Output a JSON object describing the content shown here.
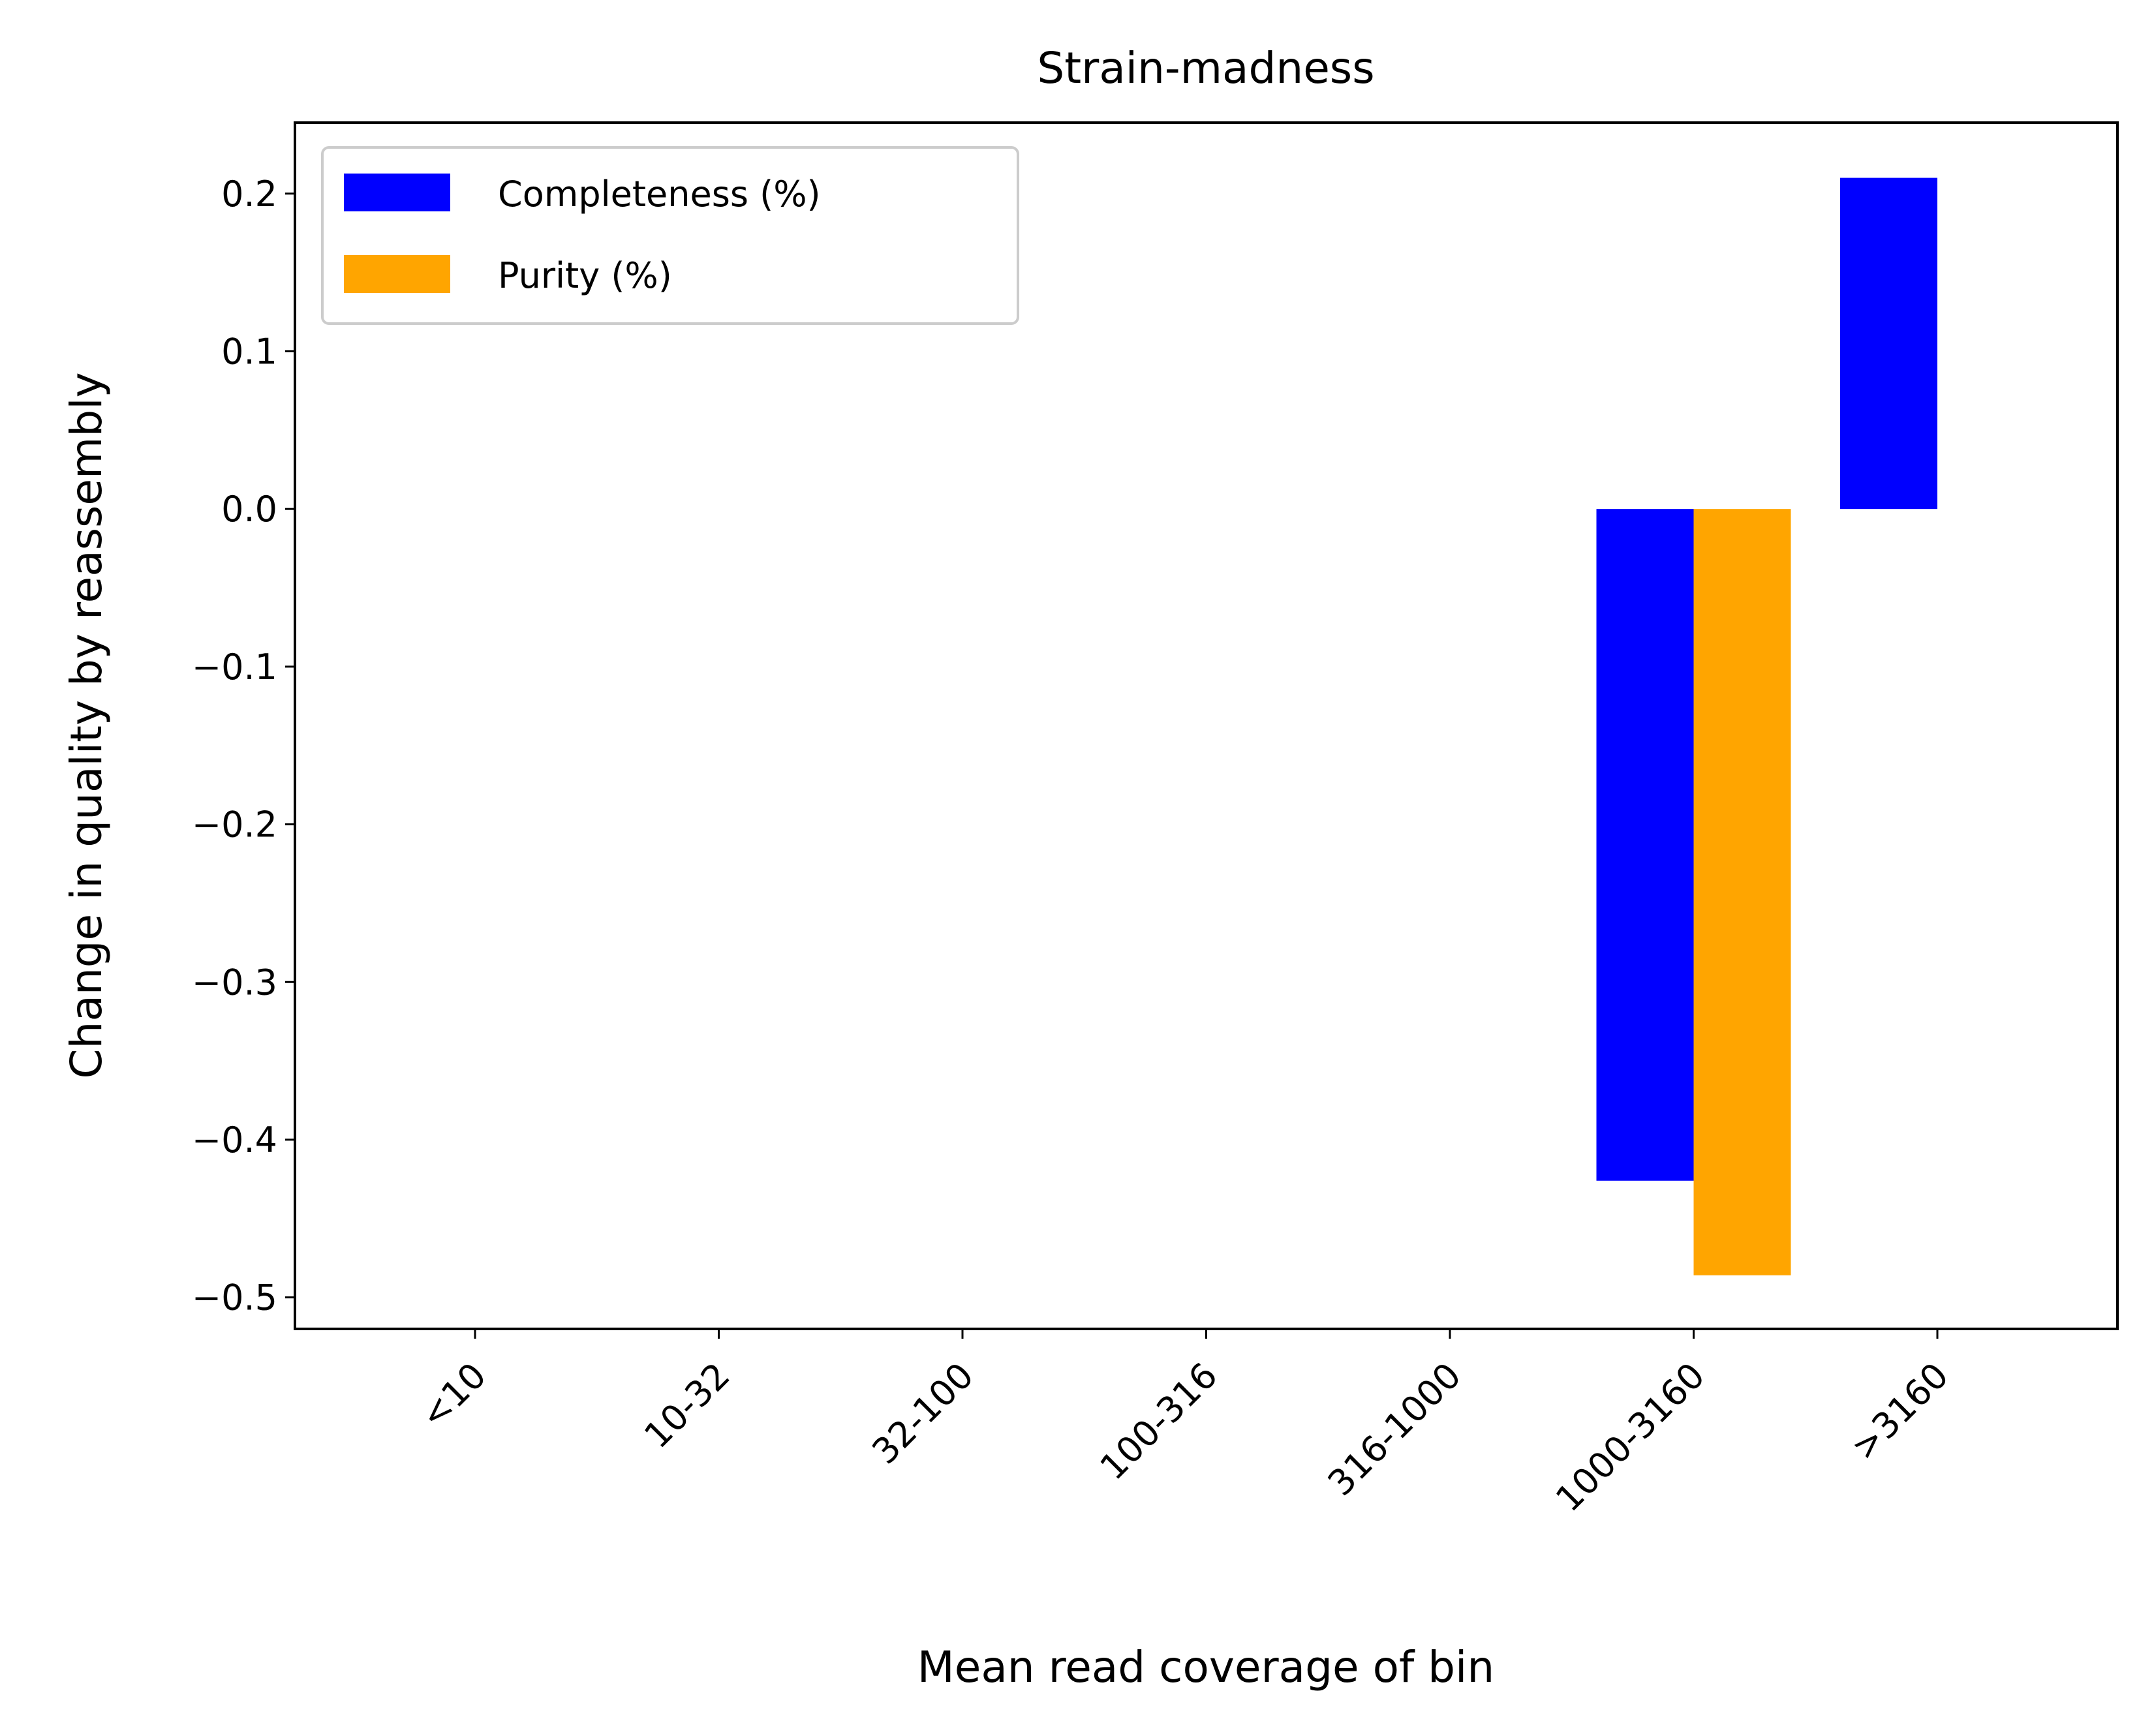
{
  "chart_data": {
    "type": "bar",
    "title": "Strain-madness",
    "xlabel": "Mean read coverage of bin",
    "ylabel": "Change in quality by reassembly",
    "categories": [
      "<10",
      "10-32",
      "32-100",
      "100-316",
      "316-1000",
      "1000-3160",
      ">3160"
    ],
    "series": [
      {
        "name": "Completeness (%)",
        "color": "#0000ff",
        "values": [
          0,
          0,
          0,
          0,
          0,
          -0.426,
          0.21
        ]
      },
      {
        "name": "Purity (%)",
        "color": "#ffa500",
        "values": [
          0,
          0,
          0,
          0,
          0,
          -0.486,
          0
        ]
      }
    ],
    "ylim": [
      -0.52,
      0.245
    ],
    "yticks": [
      {
        "value": 0.2,
        "label": "0.2"
      },
      {
        "value": 0.1,
        "label": "0.1"
      },
      {
        "value": 0.0,
        "label": "0.0"
      },
      {
        "value": -0.1,
        "label": "−0.1"
      },
      {
        "value": -0.2,
        "label": "−0.2"
      },
      {
        "value": -0.3,
        "label": "−0.3"
      },
      {
        "value": -0.4,
        "label": "−0.4"
      },
      {
        "value": -0.5,
        "label": "−0.5"
      }
    ],
    "grid": false,
    "legend_position": "top-left"
  }
}
